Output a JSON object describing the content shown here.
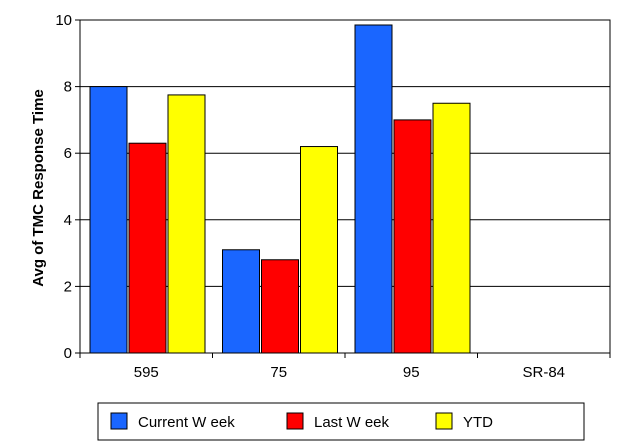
{
  "chart_data": {
    "type": "bar",
    "title": "",
    "xlabel": "",
    "ylabel": "Avg of TMC Response Time",
    "categories": [
      "595",
      "75",
      "95",
      "SR-84"
    ],
    "series": [
      {
        "name": "Current W eek",
        "values": [
          8.0,
          3.1,
          9.85,
          null
        ],
        "color": "#1a66ff"
      },
      {
        "name": "Last W eek",
        "values": [
          6.3,
          2.8,
          7.0,
          null
        ],
        "color": "#ff0000"
      },
      {
        "name": "YTD",
        "values": [
          7.75,
          6.2,
          7.5,
          null
        ],
        "color": "#ffff00"
      }
    ],
    "ylim": [
      0,
      10
    ],
    "yticks": [
      "0",
      "2",
      "4",
      "6",
      "8",
      "10"
    ],
    "grid": true,
    "legend_position": "bottom"
  }
}
